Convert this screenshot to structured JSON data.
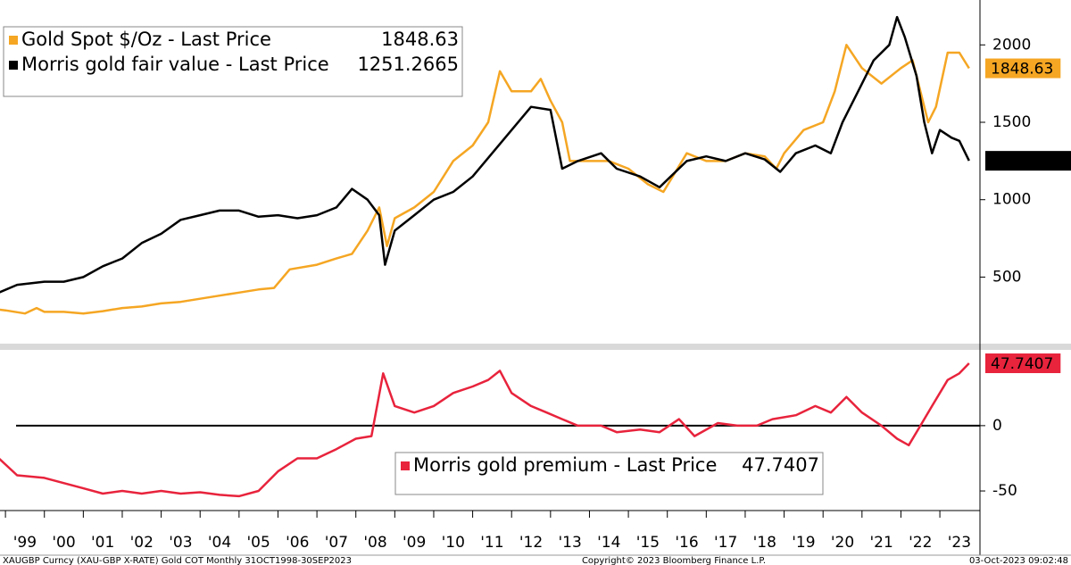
{
  "chart_data": [
    {
      "type": "line",
      "xlim": [
        1998.86,
        2024.03
      ],
      "ylim": [
        70,
        2290
      ],
      "yticks": [
        500,
        1000,
        1500,
        2000
      ],
      "series": [
        {
          "name": "Gold Spot $/Oz - Last Price",
          "color": "#f5a623",
          "x": [
            1998.83,
            1999.0,
            1999.5,
            1999.8,
            2000.0,
            2000.5,
            2001.0,
            2001.5,
            2002.0,
            2002.5,
            2003.0,
            2003.5,
            2004.0,
            2004.5,
            2005.0,
            2005.5,
            2005.9,
            2006.3,
            2007.0,
            2007.5,
            2007.9,
            2008.3,
            2008.6,
            2008.8,
            2009.0,
            2009.5,
            2010.0,
            2010.5,
            2011.0,
            2011.4,
            2011.7,
            2012.0,
            2012.5,
            2012.75,
            2013.0,
            2013.3,
            2013.5,
            2014.0,
            2014.5,
            2015.0,
            2015.5,
            2015.9,
            2016.5,
            2017.0,
            2017.5,
            2018.0,
            2018.5,
            2018.8,
            2019.0,
            2019.5,
            2020.0,
            2020.3,
            2020.6,
            2021.0,
            2021.5,
            2022.0,
            2022.3,
            2022.7,
            2022.9,
            2023.2,
            2023.5,
            2023.75
          ],
          "values": [
            290,
            285,
            265,
            300,
            275,
            275,
            265,
            280,
            300,
            310,
            330,
            340,
            360,
            380,
            400,
            420,
            430,
            550,
            580,
            620,
            650,
            800,
            950,
            700,
            880,
            950,
            1050,
            1250,
            1350,
            1500,
            1830,
            1700,
            1700,
            1780,
            1640,
            1500,
            1250,
            1250,
            1250,
            1200,
            1100,
            1050,
            1300,
            1250,
            1250,
            1300,
            1280,
            1200,
            1300,
            1450,
            1500,
            1700,
            2000,
            1850,
            1750,
            1850,
            1900,
            1500,
            1600,
            1950,
            1950,
            1848.63
          ]
        },
        {
          "name": "Morris gold fair value - Last Price",
          "color": "#000000",
          "x": [
            1998.83,
            1999.3,
            2000.0,
            2000.5,
            2001.0,
            2001.5,
            2002.0,
            2002.5,
            2003.0,
            2003.5,
            2004.0,
            2004.5,
            2005.0,
            2005.5,
            2006.0,
            2006.5,
            2007.0,
            2007.5,
            2007.9,
            2008.3,
            2008.6,
            2008.75,
            2009.0,
            2009.5,
            2010.0,
            2010.5,
            2011.0,
            2011.5,
            2012.0,
            2012.5,
            2013.0,
            2013.3,
            2013.7,
            2014.3,
            2014.7,
            2015.3,
            2015.8,
            2016.5,
            2017.0,
            2017.5,
            2018.0,
            2018.5,
            2018.9,
            2019.3,
            2019.8,
            2020.2,
            2020.5,
            2020.9,
            2021.3,
            2021.7,
            2021.9,
            2022.1,
            2022.4,
            2022.6,
            2022.8,
            2023.0,
            2023.3,
            2023.5,
            2023.75
          ],
          "values": [
            400,
            450,
            470,
            470,
            500,
            570,
            620,
            720,
            780,
            870,
            900,
            930,
            930,
            890,
            900,
            880,
            900,
            950,
            1070,
            1000,
            900,
            580,
            800,
            900,
            1000,
            1050,
            1150,
            1300,
            1450,
            1600,
            1580,
            1200,
            1250,
            1300,
            1200,
            1150,
            1080,
            1250,
            1280,
            1250,
            1300,
            1260,
            1180,
            1300,
            1350,
            1300,
            1500,
            1700,
            1900,
            2000,
            2180,
            2050,
            1800,
            1500,
            1300,
            1450,
            1400,
            1380,
            1251.2665
          ]
        }
      ]
    },
    {
      "type": "line",
      "xlim": [
        1998.86,
        2024.03
      ],
      "ylim": [
        -65,
        58
      ],
      "yticks": [
        -50,
        0
      ],
      "reference_line": 0,
      "xticks": [
        {
          "value": 1999,
          "label": "'99"
        },
        {
          "value": 2000,
          "label": "'00"
        },
        {
          "value": 2001,
          "label": "'01"
        },
        {
          "value": 2002,
          "label": "'02"
        },
        {
          "value": 2003,
          "label": "'03"
        },
        {
          "value": 2004,
          "label": "'04"
        },
        {
          "value": 2005,
          "label": "'05"
        },
        {
          "value": 2006,
          "label": "'06"
        },
        {
          "value": 2007,
          "label": "'07"
        },
        {
          "value": 2008,
          "label": "'08"
        },
        {
          "value": 2009,
          "label": "'09"
        },
        {
          "value": 2010,
          "label": "'10"
        },
        {
          "value": 2011,
          "label": "'11"
        },
        {
          "value": 2012,
          "label": "'12"
        },
        {
          "value": 2013,
          "label": "'13"
        },
        {
          "value": 2014,
          "label": "'14"
        },
        {
          "value": 2015,
          "label": "'15"
        },
        {
          "value": 2016,
          "label": "'16"
        },
        {
          "value": 2017,
          "label": "'17"
        },
        {
          "value": 2018,
          "label": "'18"
        },
        {
          "value": 2019,
          "label": "'19"
        },
        {
          "value": 2020,
          "label": "'20"
        },
        {
          "value": 2021,
          "label": "'21"
        },
        {
          "value": 2022,
          "label": "'22"
        },
        {
          "value": 2023,
          "label": "'23"
        }
      ],
      "series": [
        {
          "name": "Morris gold premium - Last Price",
          "color": "#e8233c",
          "x": [
            1998.83,
            1999.3,
            2000.0,
            2001.0,
            2001.5,
            2002.0,
            2002.5,
            2003.0,
            2003.5,
            2004.0,
            2004.5,
            2005.0,
            2005.5,
            2006.0,
            2006.5,
            2007.0,
            2007.5,
            2008.0,
            2008.4,
            2008.7,
            2009.0,
            2009.5,
            2010.0,
            2010.5,
            2011.0,
            2011.4,
            2011.7,
            2012.0,
            2012.5,
            2012.9,
            2013.3,
            2013.7,
            2014.3,
            2014.7,
            2015.3,
            2015.8,
            2016.3,
            2016.7,
            2017.3,
            2017.8,
            2018.3,
            2018.7,
            2019.3,
            2019.8,
            2020.2,
            2020.6,
            2021.0,
            2021.5,
            2021.9,
            2022.2,
            2022.5,
            2022.8,
            2023.2,
            2023.5,
            2023.75
          ],
          "values": [
            -25,
            -38,
            -40,
            -48,
            -52,
            -50,
            -52,
            -50,
            -52,
            -51,
            -53,
            -54,
            -50,
            -35,
            -25,
            -25,
            -18,
            -10,
            -8,
            40,
            15,
            10,
            15,
            25,
            30,
            35,
            42,
            25,
            15,
            10,
            5,
            0,
            0,
            -5,
            -3,
            -5,
            5,
            -8,
            2,
            0,
            0,
            5,
            8,
            15,
            10,
            22,
            10,
            0,
            -10,
            -15,
            0,
            15,
            35,
            40,
            47.7407
          ]
        }
      ]
    }
  ],
  "footer": {
    "left": "XAUGBP Curncy (XAU-GBP X-RATE) Gold COT  Monthly 31OCT1998-30SEP2023",
    "center": "Copyright© 2023 Bloomberg Finance L.P.",
    "right": "03-Oct-2023 09:02:48"
  }
}
